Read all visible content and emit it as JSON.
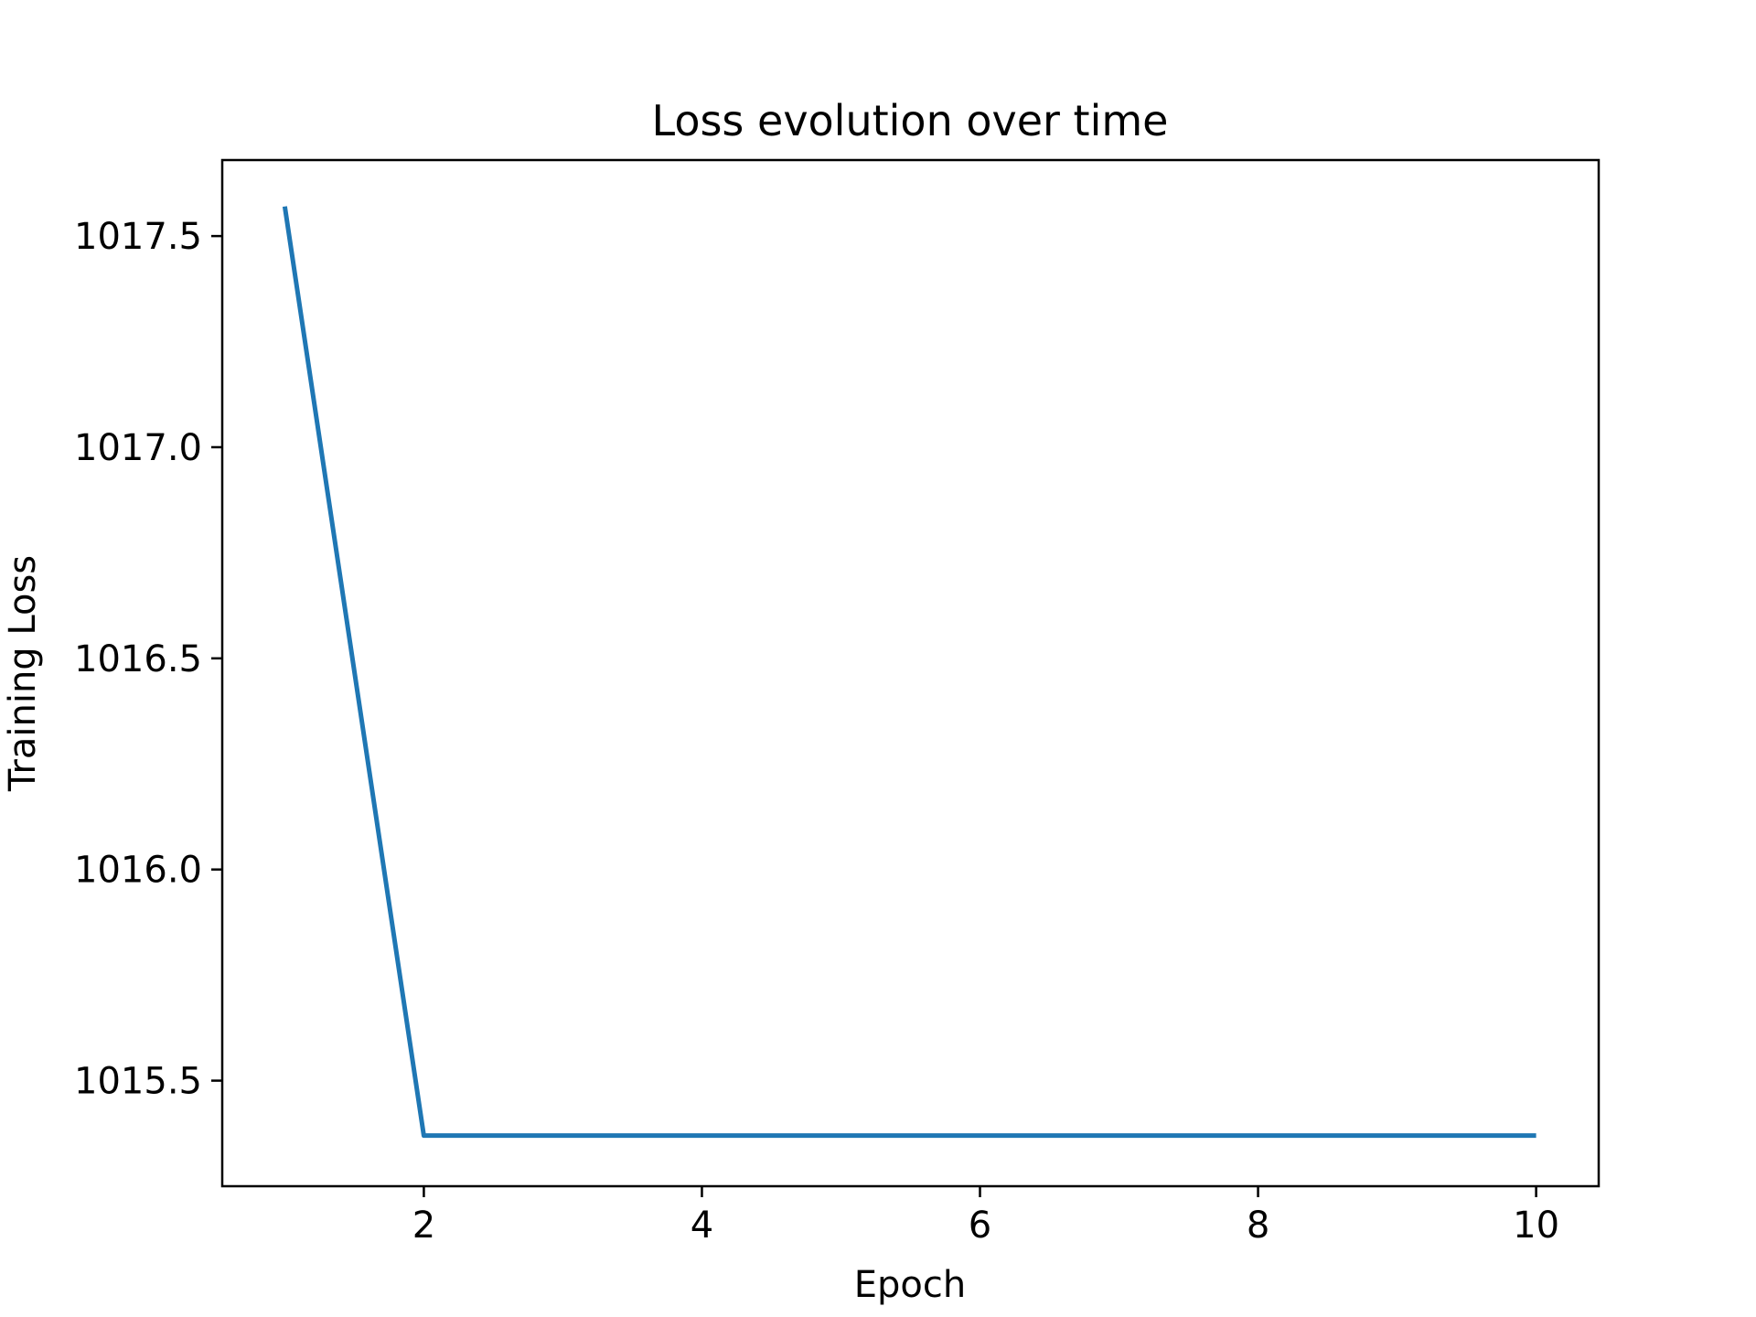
{
  "chart_data": {
    "type": "line",
    "title": "Loss evolution over time",
    "xlabel": "Epoch",
    "ylabel": "Training Loss",
    "xlim": [
      0.55,
      10.45
    ],
    "ylim": [
      1015.25,
      1017.68
    ],
    "xticks": [
      2,
      4,
      6,
      8,
      10
    ],
    "xtick_labels": [
      "2",
      "4",
      "6",
      "8",
      "10"
    ],
    "yticks": [
      1015.5,
      1016.0,
      1016.5,
      1017.0,
      1017.5
    ],
    "ytick_labels": [
      "1015.5",
      "1016.0",
      "1016.5",
      "1017.0",
      "1017.5"
    ],
    "grid": false,
    "x": [
      1,
      2,
      3,
      4,
      5,
      6,
      7,
      8,
      9,
      10
    ],
    "series": [
      {
        "values": [
          1017.57,
          1015.37,
          1015.37,
          1015.37,
          1015.37,
          1015.37,
          1015.37,
          1015.37,
          1015.37,
          1015.37
        ],
        "color": "#1f77b4"
      }
    ]
  }
}
